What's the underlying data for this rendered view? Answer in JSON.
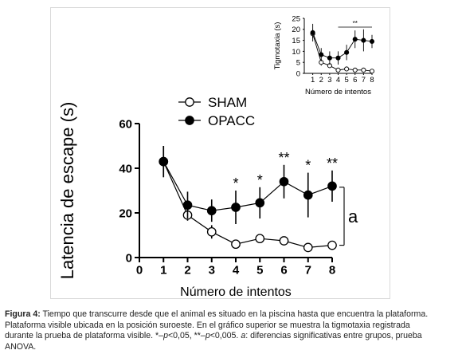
{
  "chart_data": [
    {
      "type": "line",
      "xlabel": "Número de intentos",
      "ylabel": "Latencia de escape (s)",
      "xlim": [
        0,
        8
      ],
      "ylim": [
        0,
        60
      ],
      "xticks": [
        0,
        1,
        2,
        3,
        4,
        5,
        6,
        7,
        8
      ],
      "yticks": [
        0,
        20,
        40,
        60
      ],
      "legend_position": "top-left",
      "grid": false,
      "series": [
        {
          "name": "SHAM",
          "marker": "open-circle",
          "x": [
            1,
            2,
            3,
            4,
            5,
            6,
            7,
            8
          ],
          "y": [
            43,
            19,
            11.5,
            6,
            8.5,
            7.5,
            4.5,
            5.5
          ],
          "err": [
            7,
            2.5,
            3,
            1.5,
            2,
            1.5,
            1,
            1.5
          ]
        },
        {
          "name": "OPACC",
          "marker": "filled-circle",
          "x": [
            1,
            2,
            3,
            4,
            5,
            6,
            7,
            8
          ],
          "y": [
            43,
            23.5,
            21,
            22.5,
            24.5,
            34,
            28,
            32
          ],
          "err": [
            7,
            6,
            5,
            7.5,
            7,
            7.5,
            10,
            7
          ]
        }
      ],
      "significance_marks": [
        {
          "x": 4,
          "label": "*"
        },
        {
          "x": 5,
          "label": "*"
        },
        {
          "x": 6,
          "label": "**"
        },
        {
          "x": 7,
          "label": "*"
        },
        {
          "x": 8,
          "label": "**"
        }
      ],
      "group_bracket": {
        "from": 5.5,
        "to": 31.5,
        "label": "a"
      }
    },
    {
      "type": "line",
      "xlabel": "Número de intentos",
      "ylabel": "Tigmotaxia (s)",
      "xlim": [
        0,
        8
      ],
      "ylim": [
        0,
        25
      ],
      "xticks": [
        1,
        2,
        3,
        4,
        5,
        6,
        7,
        8
      ],
      "yticks": [
        0,
        5,
        10,
        15,
        20,
        25
      ],
      "grid": false,
      "series": [
        {
          "marker": "open-circle",
          "x": [
            1,
            2,
            3,
            4,
            5,
            6,
            7,
            8
          ],
          "y": [
            18,
            5,
            3.5,
            1.5,
            2,
            1.5,
            1.5,
            1
          ],
          "err": [
            2,
            1.5,
            1,
            0.5,
            0.5,
            0.5,
            0.5,
            0.3
          ]
        },
        {
          "marker": "filled-circle",
          "x": [
            1,
            2,
            3,
            4,
            5,
            6,
            7,
            8
          ],
          "y": [
            18.5,
            8.5,
            7,
            7,
            9.5,
            15.5,
            15,
            14.5
          ],
          "err": [
            4,
            3,
            3,
            3,
            3.5,
            4,
            5,
            3
          ]
        }
      ],
      "significance_marks": [
        {
          "from": 4,
          "to": 8,
          "label": "**"
        }
      ]
    }
  ],
  "caption": {
    "lead": "Figura 4:",
    "line1": "Tiempo que transcurre desde que el animal es situado en la piscina hasta que encuentra la plataforma.",
    "line2": "Plataforma visible ubicada en la posición suroeste. En el gráfico superior se muestra la tigmotaxia registrada",
    "line3_before": "durante la prueba de plataforma visible. *–",
    "p1": "p",
    "mid1": "<0,05, **–",
    "p2": "p",
    "mid2": "<0,005. ",
    "a": "a",
    "line3_after": ": diferencias significativas entre grupos, prueba",
    "line4": "ANOVA."
  }
}
